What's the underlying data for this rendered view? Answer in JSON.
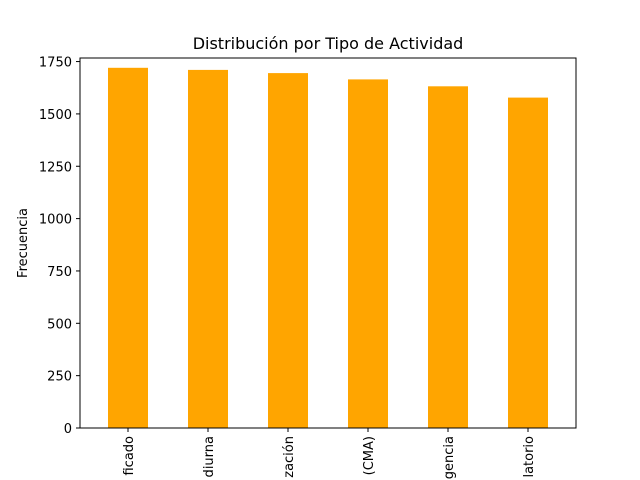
{
  "chart_data": {
    "type": "bar",
    "title": "Distribución por Tipo de Actividad",
    "xlabel": "",
    "ylabel": "Frecuencia",
    "categories": [
      "ficado",
      "diurna",
      "zación",
      "(CMA)",
      "gencia",
      "latorio"
    ],
    "values": [
      1720,
      1710,
      1695,
      1665,
      1632,
      1578
    ],
    "ylim": [
      0,
      1750
    ],
    "yticks": [
      0,
      250,
      500,
      750,
      1000,
      1250,
      1500,
      1750
    ],
    "bar_color": "#ffa500",
    "grid": false,
    "legend": "none"
  }
}
